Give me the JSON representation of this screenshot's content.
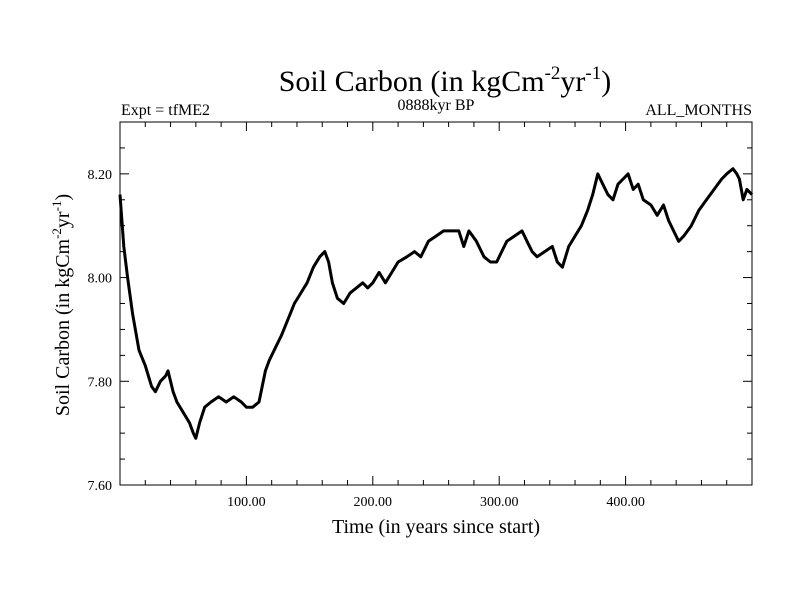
{
  "chart_data": {
    "type": "line",
    "title": {
      "main": "Soil Carbon (in kgCm",
      "sup1": "-2",
      "mid": "yr",
      "sup2": "-1",
      "end": ")"
    },
    "subtitle_left": "Expt = tfME2",
    "subtitle_center": "0888kyr BP",
    "subtitle_right": "ALL_MONTHS",
    "xlabel": "Time (in years since start)",
    "ylabel": {
      "main": "Soil Carbon (in kgCm",
      "sup1": "-2",
      "mid": "yr",
      "sup2": "-1",
      "end": ")"
    },
    "xlim": [
      0,
      500
    ],
    "ylim": [
      7.6,
      8.3
    ],
    "xticks": [
      {
        "value": 100,
        "label": "100.00"
      },
      {
        "value": 200,
        "label": "200.00"
      },
      {
        "value": 300,
        "label": "300.00"
      },
      {
        "value": 400,
        "label": "400.00"
      }
    ],
    "yticks": [
      {
        "value": 7.6,
        "label": "7.60"
      },
      {
        "value": 7.8,
        "label": "7.80"
      },
      {
        "value": 8.0,
        "label": "8.00"
      },
      {
        "value": 8.2,
        "label": "8.20"
      }
    ],
    "series": [
      {
        "name": "Soil Carbon",
        "color": "#000000",
        "x": [
          0,
          3,
          6,
          10,
          15,
          20,
          25,
          28,
          32,
          36,
          38,
          42,
          45,
          50,
          55,
          58,
          60,
          63,
          67,
          72,
          78,
          84,
          90,
          96,
          100,
          105,
          110,
          115,
          118,
          122,
          128,
          133,
          138,
          143,
          148,
          153,
          158,
          162,
          165,
          168,
          172,
          177,
          182,
          187,
          192,
          196,
          200,
          205,
          210,
          215,
          220,
          227,
          233,
          238,
          244,
          250,
          256,
          262,
          268,
          272,
          276,
          282,
          288,
          293,
          298,
          302,
          306,
          312,
          318,
          322,
          326,
          330,
          336,
          342,
          346,
          350,
          355,
          360,
          365,
          370,
          374,
          378,
          382,
          386,
          390,
          394,
          398,
          402,
          406,
          410,
          414,
          420,
          425,
          430,
          434,
          438,
          442,
          446,
          452,
          458,
          464,
          470,
          476,
          480,
          485,
          488,
          490,
          493,
          496,
          500
        ],
        "y": [
          8.16,
          8.06,
          8.0,
          7.93,
          7.86,
          7.83,
          7.79,
          7.78,
          7.8,
          7.81,
          7.82,
          7.78,
          7.76,
          7.74,
          7.72,
          7.7,
          7.69,
          7.72,
          7.75,
          7.76,
          7.77,
          7.76,
          7.77,
          7.76,
          7.75,
          7.75,
          7.76,
          7.82,
          7.84,
          7.86,
          7.89,
          7.92,
          7.95,
          7.97,
          7.99,
          8.02,
          8.04,
          8.05,
          8.03,
          7.99,
          7.96,
          7.95,
          7.97,
          7.98,
          7.99,
          7.98,
          7.99,
          8.01,
          7.99,
          8.01,
          8.03,
          8.04,
          8.05,
          8.04,
          8.07,
          8.08,
          8.09,
          8.09,
          8.09,
          8.06,
          8.09,
          8.07,
          8.04,
          8.03,
          8.03,
          8.05,
          8.07,
          8.08,
          8.09,
          8.07,
          8.05,
          8.04,
          8.05,
          8.06,
          8.03,
          8.02,
          8.06,
          8.08,
          8.1,
          8.13,
          8.16,
          8.2,
          8.18,
          8.16,
          8.15,
          8.18,
          8.19,
          8.2,
          8.17,
          8.18,
          8.15,
          8.14,
          8.12,
          8.14,
          8.11,
          8.09,
          8.07,
          8.08,
          8.1,
          8.13,
          8.15,
          8.17,
          8.19,
          8.2,
          8.21,
          8.2,
          8.19,
          8.15,
          8.17,
          8.16
        ]
      }
    ]
  }
}
